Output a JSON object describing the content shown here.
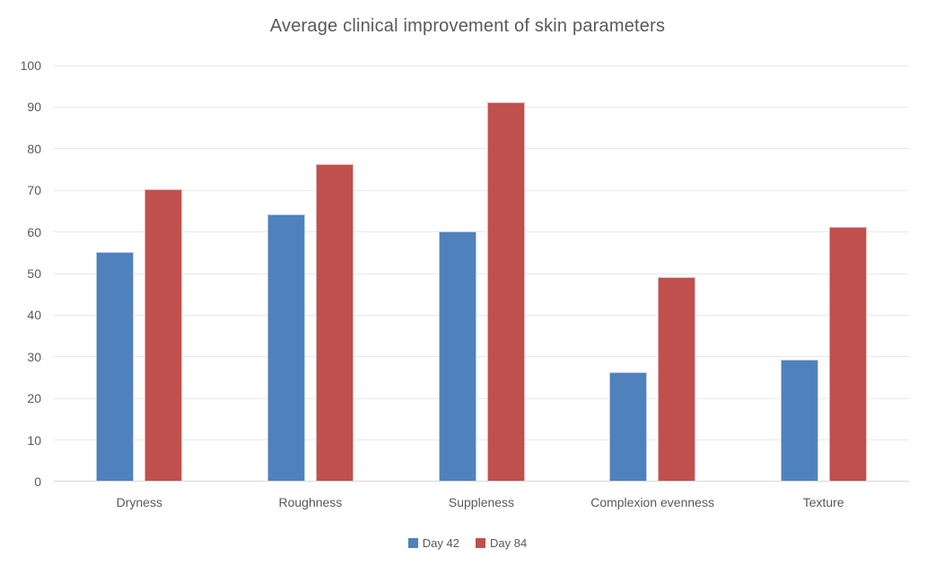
{
  "chart_data": {
    "type": "bar",
    "title": "Average clinical improvement of skin parameters",
    "categories": [
      "Dryness",
      "Roughness",
      "Suppleness",
      "Complexion evenness",
      "Texture"
    ],
    "series": [
      {
        "name": "Day 42",
        "color": "#4F81BD",
        "border_color": "#B8CCE4",
        "values": [
          55,
          64,
          60,
          26,
          29
        ]
      },
      {
        "name": "Day 84",
        "color": "#C0504D",
        "border_color": "#E5B8B7",
        "values": [
          70,
          76,
          91,
          49,
          61
        ]
      }
    ],
    "xlabel": "",
    "ylabel": "",
    "ylim": [
      0,
      100
    ],
    "ytick_step": 10,
    "yticks": [
      0,
      10,
      20,
      30,
      40,
      50,
      60,
      70,
      80,
      90,
      100
    ],
    "grid": true,
    "gridline_color": "#e8e8e8",
    "legend_position": "bottom",
    "text_color": "#595959",
    "background_color": "#ffffff"
  }
}
